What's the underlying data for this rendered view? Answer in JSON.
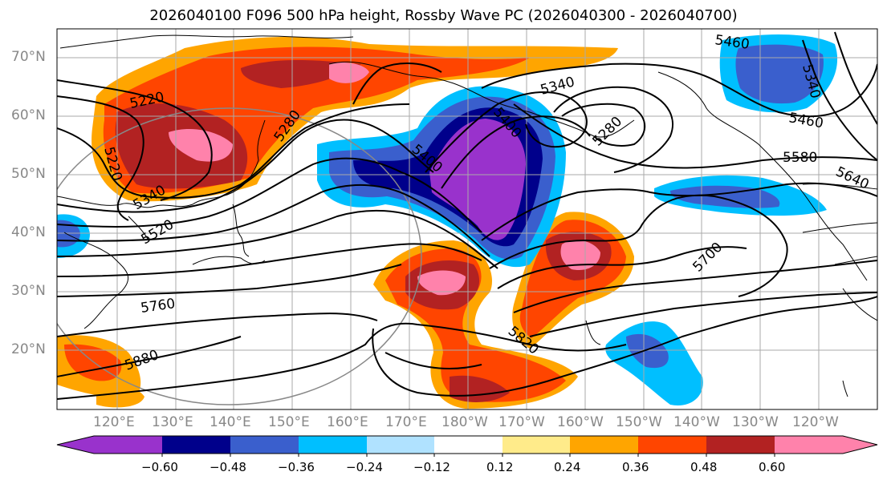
{
  "title": "2026040100 F096 500 hPa height, Rossby Wave PC (2026040300 - 2026040700)",
  "lat_labels": [
    "70°N",
    "60°N",
    "50°N",
    "40°N",
    "30°N",
    "20°N"
  ],
  "lon_labels": [
    "120°E",
    "130°E",
    "140°E",
    "150°E",
    "160°E",
    "170°E",
    "180°W",
    "170°W",
    "160°W",
    "150°W",
    "140°W",
    "130°W",
    "120°W"
  ],
  "contour_labels": [
    "5460",
    "5340",
    "5220",
    "5280",
    "5400",
    "5340",
    "5280",
    "5400",
    "5460",
    "5580",
    "5640",
    "5220",
    "5340",
    "5520",
    "5700",
    "5760",
    "5880",
    "5820"
  ],
  "colorbar": {
    "tick_labels": [
      "−0.60",
      "−0.48",
      "−0.36",
      "−0.24",
      "−0.12",
      "0.12",
      "0.24",
      "0.36",
      "0.48",
      "0.60"
    ],
    "colors": [
      "#9932cc",
      "#00008b",
      "#3a5fcd",
      "#00bfff",
      "#b0e2ff",
      "#ffffff",
      "#ffeb8a",
      "#ffa500",
      "#ff4500",
      "#b22222",
      "#ff82ab"
    ]
  }
}
